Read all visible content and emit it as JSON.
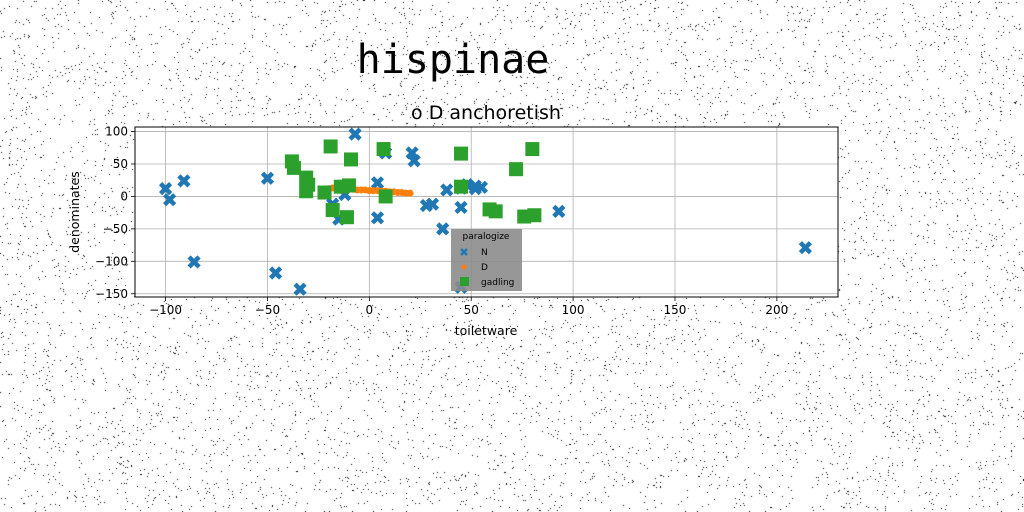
{
  "chart_data": {
    "type": "scatter",
    "suptitle": "hispinae",
    "title": "o D anchoretish",
    "xlabel": "toiletware",
    "ylabel": "denominates",
    "xlim": [
      -115,
      230
    ],
    "ylim": [
      -155,
      107
    ],
    "xticks": [
      -100,
      -50,
      0,
      50,
      100,
      150,
      200
    ],
    "yticks": [
      -150,
      -100,
      -50,
      0,
      50,
      100
    ],
    "grid": true,
    "legend": {
      "title": "paralogize",
      "placement": "lower center"
    },
    "series": [
      {
        "name": "N",
        "marker": "x",
        "color": "#1f77b4",
        "points": [
          [
            -100,
            12
          ],
          [
            -98,
            -5
          ],
          [
            -91,
            24
          ],
          [
            -86,
            -101
          ],
          [
            -50,
            28
          ],
          [
            -46,
            -118
          ],
          [
            -34,
            -143
          ],
          [
            -18,
            -12
          ],
          [
            -15,
            -35
          ],
          [
            -12,
            3
          ],
          [
            -7,
            96
          ],
          [
            4,
            -33
          ],
          [
            4,
            21
          ],
          [
            8,
            67
          ],
          [
            21,
            67
          ],
          [
            22,
            55
          ],
          [
            28,
            -14
          ],
          [
            31,
            -12
          ],
          [
            36,
            -50
          ],
          [
            38,
            10
          ],
          [
            45,
            13
          ],
          [
            45,
            -17
          ],
          [
            48,
            18
          ],
          [
            52,
            16
          ],
          [
            52,
            12
          ],
          [
            55,
            14
          ],
          [
            45,
            -140
          ],
          [
            93,
            -23
          ],
          [
            214,
            -79
          ]
        ]
      },
      {
        "name": "D",
        "marker": "o",
        "color": "#ff7f0e",
        "points": [
          [
            -20,
            12
          ],
          [
            -18,
            13
          ],
          [
            -16,
            12
          ],
          [
            -14,
            12
          ],
          [
            -12,
            11
          ],
          [
            -10,
            11
          ],
          [
            -8,
            11
          ],
          [
            -6,
            10
          ],
          [
            -4,
            10
          ],
          [
            -2,
            10
          ],
          [
            0,
            9
          ],
          [
            2,
            9
          ],
          [
            4,
            9
          ],
          [
            6,
            8
          ],
          [
            8,
            8
          ],
          [
            10,
            7
          ],
          [
            12,
            7
          ],
          [
            14,
            6
          ],
          [
            16,
            6
          ],
          [
            18,
            5
          ],
          [
            20,
            5
          ]
        ]
      },
      {
        "name": "gadling",
        "marker": "s",
        "color": "#2ca02c",
        "points": [
          [
            -38,
            54
          ],
          [
            -37,
            44
          ],
          [
            -31,
            29
          ],
          [
            -31,
            8
          ],
          [
            -30,
            18
          ],
          [
            -22,
            6
          ],
          [
            -19,
            77
          ],
          [
            -18,
            -21
          ],
          [
            -14,
            15
          ],
          [
            -11,
            -32
          ],
          [
            -10,
            17
          ],
          [
            -9,
            57
          ],
          [
            7,
            73
          ],
          [
            8,
            0
          ],
          [
            45,
            66
          ],
          [
            45,
            15
          ],
          [
            59,
            -20
          ],
          [
            62,
            -23
          ],
          [
            72,
            42
          ],
          [
            76,
            -31
          ],
          [
            80,
            73
          ],
          [
            81,
            -29
          ]
        ]
      }
    ]
  }
}
